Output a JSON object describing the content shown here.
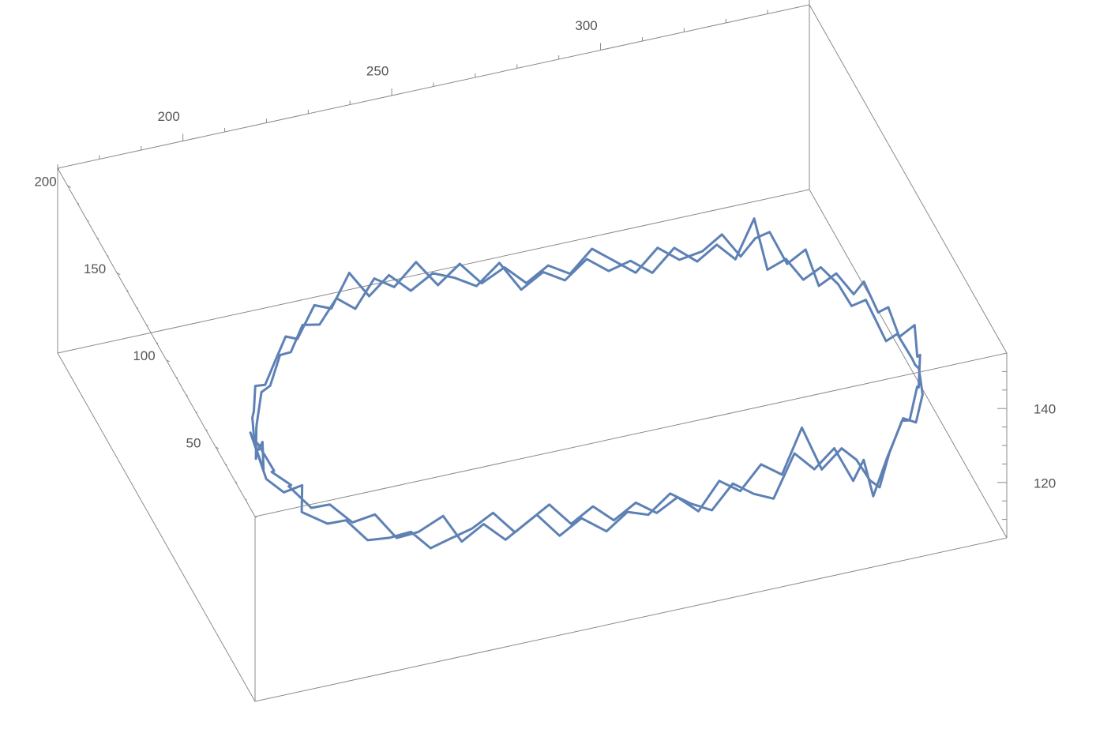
{
  "chart_data": {
    "type": "line",
    "title": "",
    "xlabel": "",
    "ylabel": "",
    "zlabel": "",
    "xlim": [
      170,
      350
    ],
    "ylim": [
      10,
      210
    ],
    "zlim": [
      105,
      155
    ],
    "x_ticks": [
      "200",
      "250",
      "300"
    ],
    "y_ticks": [
      "50",
      "100",
      "150",
      "200"
    ],
    "z_ticks": [
      "120",
      "140"
    ],
    "grid": false,
    "legend": "none",
    "colors": {
      "series": "#5e81b5",
      "box": "#8a8a8a",
      "text": "#555555"
    },
    "series": [
      {
        "points": [
          [
            192,
            99,
            127
          ],
          [
            190,
            91,
            130
          ],
          [
            194,
            104,
            125
          ],
          [
            190,
            86,
            127
          ],
          [
            193,
            112,
            124
          ],
          [
            189,
            79,
            128
          ],
          [
            192,
            74,
            126
          ],
          [
            195,
            68,
            130
          ],
          [
            193,
            60,
            127
          ],
          [
            198,
            55,
            125
          ],
          [
            201,
            49,
            128
          ],
          [
            205,
            44,
            124
          ],
          [
            209,
            39,
            126
          ],
          [
            213,
            34,
            129
          ],
          [
            217,
            31,
            125
          ],
          [
            221,
            28,
            128
          ],
          [
            226,
            27,
            130
          ],
          [
            231,
            27,
            133
          ],
          [
            236,
            26,
            127
          ],
          [
            241,
            25,
            131
          ],
          [
            246,
            23,
            125
          ],
          [
            251,
            22,
            129
          ],
          [
            257,
            22,
            124
          ],
          [
            262,
            22,
            128
          ],
          [
            267,
            22,
            126
          ],
          [
            272,
            21,
            131
          ],
          [
            277,
            21,
            127
          ],
          [
            282,
            21,
            124
          ],
          [
            287,
            21,
            130
          ],
          [
            292,
            21,
            126
          ],
          [
            297,
            22,
            123
          ],
          [
            302,
            22,
            134
          ],
          [
            307,
            23,
            128
          ],
          [
            312,
            24,
            132
          ],
          [
            317,
            26,
            121
          ],
          [
            320,
            28,
            125
          ],
          [
            323,
            31,
            113
          ],
          [
            327,
            34,
            121
          ],
          [
            330,
            38,
            124
          ],
          [
            333,
            43,
            126
          ],
          [
            337,
            47,
            122
          ],
          [
            340,
            53,
            126
          ],
          [
            341,
            61,
            129
          ],
          [
            342,
            69,
            126
          ],
          [
            343,
            76,
            124
          ],
          [
            341,
            83,
            128
          ],
          [
            340,
            90,
            123
          ],
          [
            339,
            96,
            126
          ],
          [
            338,
            102,
            129
          ],
          [
            336,
            108,
            125
          ],
          [
            334,
            113,
            129
          ],
          [
            331,
            118,
            132
          ],
          [
            328,
            123,
            127
          ],
          [
            325,
            128,
            131
          ],
          [
            322,
            134,
            126
          ],
          [
            320,
            139,
            138
          ],
          [
            316,
            141,
            127
          ],
          [
            312,
            143,
            131
          ],
          [
            308,
            146,
            126
          ],
          [
            303,
            148,
            130
          ],
          [
            298,
            149,
            124
          ],
          [
            293,
            150,
            128
          ],
          [
            288,
            151,
            126
          ],
          [
            283,
            152,
            130
          ],
          [
            278,
            153,
            125
          ],
          [
            273,
            154,
            128
          ],
          [
            268,
            155,
            124
          ],
          [
            263,
            156,
            132
          ],
          [
            258,
            158,
            126
          ],
          [
            253,
            159,
            129
          ],
          [
            248,
            160,
            131
          ],
          [
            243,
            161,
            127
          ],
          [
            238,
            162,
            132
          ],
          [
            233,
            161,
            128
          ],
          [
            228,
            160,
            136
          ],
          [
            223,
            157,
            129
          ],
          [
            218,
            153,
            133
          ],
          [
            213,
            149,
            127
          ],
          [
            209,
            144,
            131
          ],
          [
            205,
            138,
            128
          ],
          [
            201,
            131,
            126
          ],
          [
            197,
            124,
            130
          ],
          [
            195,
            117,
            127
          ],
          [
            193,
            110,
            129
          ],
          [
            192,
            104,
            126
          ],
          [
            191,
            96,
            129
          ],
          [
            193,
            88,
            125
          ],
          [
            191,
            82,
            128
          ],
          [
            194,
            75,
            127
          ],
          [
            192,
            69,
            130
          ],
          [
            196,
            63,
            126
          ],
          [
            199,
            57,
            129
          ],
          [
            203,
            51,
            126
          ],
          [
            207,
            45,
            130
          ],
          [
            211,
            40,
            125
          ],
          [
            215,
            35,
            128
          ],
          [
            220,
            31,
            133
          ],
          [
            224,
            29,
            126
          ],
          [
            229,
            28,
            130
          ],
          [
            234,
            27,
            125
          ],
          [
            239,
            26,
            129
          ],
          [
            244,
            25,
            133
          ],
          [
            249,
            24,
            127
          ],
          [
            254,
            23,
            131
          ],
          [
            259,
            23,
            126
          ],
          [
            264,
            22,
            130
          ],
          [
            269,
            22,
            126
          ],
          [
            274,
            22,
            129
          ],
          [
            279,
            22,
            124
          ],
          [
            284,
            22,
            131
          ],
          [
            289,
            22,
            127
          ],
          [
            294,
            22,
            133
          ],
          [
            299,
            22,
            129
          ],
          [
            304,
            23,
            140
          ],
          [
            309,
            24,
            127
          ],
          [
            314,
            25,
            131
          ],
          [
            318,
            27,
            126
          ],
          [
            322,
            30,
            118
          ],
          [
            325,
            33,
            114
          ],
          [
            328,
            36,
            121
          ],
          [
            332,
            40,
            127
          ],
          [
            335,
            45,
            124
          ],
          [
            338,
            50,
            130
          ],
          [
            340,
            57,
            126
          ],
          [
            342,
            64,
            131
          ],
          [
            343,
            71,
            127
          ],
          [
            344,
            78,
            132
          ],
          [
            342,
            85,
            126
          ],
          [
            341,
            92,
            131
          ],
          [
            340,
            98,
            127
          ],
          [
            338,
            104,
            133
          ],
          [
            337,
            110,
            127
          ],
          [
            334,
            115,
            131
          ],
          [
            331,
            120,
            126
          ],
          [
            329,
            125,
            134
          ],
          [
            326,
            131,
            128
          ],
          [
            323,
            136,
            135
          ],
          [
            321,
            142,
            131
          ],
          [
            317,
            140,
            128
          ],
          [
            313,
            142,
            134
          ],
          [
            309,
            145,
            129
          ],
          [
            304,
            147,
            127
          ],
          [
            299,
            148,
            131
          ],
          [
            294,
            149,
            125
          ],
          [
            289,
            150,
            129
          ],
          [
            284,
            151,
            133
          ],
          [
            279,
            152,
            127
          ],
          [
            274,
            153,
            130
          ],
          [
            269,
            154,
            126
          ],
          [
            264,
            155,
            131
          ],
          [
            259,
            157,
            127
          ],
          [
            254,
            158,
            133
          ],
          [
            249,
            159,
            128
          ],
          [
            244,
            160,
            135
          ],
          [
            239,
            161,
            129
          ],
          [
            234,
            160,
            133
          ],
          [
            229,
            158,
            127
          ],
          [
            224,
            156,
            132
          ],
          [
            219,
            152,
            128
          ],
          [
            214,
            148,
            131
          ],
          [
            210,
            143,
            127
          ],
          [
            206,
            137,
            130
          ],
          [
            202,
            130,
            126
          ],
          [
            198,
            122,
            129
          ],
          [
            195,
            114,
            125
          ],
          [
            193,
            106,
            128
          ],
          [
            191,
            98,
            124
          ],
          [
            190,
            93,
            128
          ]
        ]
      }
    ]
  }
}
